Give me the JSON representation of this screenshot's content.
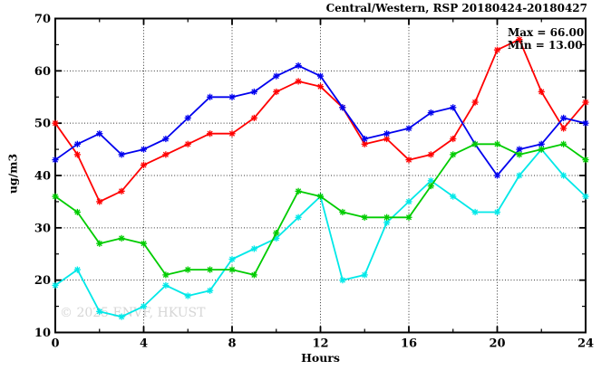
{
  "title": "Central/Western, RSP 20180424-20180427",
  "annotation": {
    "max_label": "Max = 66.00",
    "min_label": "Min = 13.00"
  },
  "watermark": "© 2025 ENVF, HKUST",
  "chart_data": {
    "type": "line",
    "title": "Central/Western, RSP 20180424-20180427",
    "xlabel": "Hours",
    "ylabel": "ug/m3",
    "xlim": [
      0,
      24
    ],
    "ylim": [
      10,
      70
    ],
    "grid": "dotted",
    "legend": "none",
    "marker": "star",
    "x_major_ticks": [
      0,
      4,
      8,
      12,
      16,
      20,
      24
    ],
    "x_minor_ticks": [
      2,
      6,
      10,
      14,
      18,
      22
    ],
    "y_major_ticks": [
      10,
      20,
      30,
      40,
      50,
      60,
      70
    ],
    "y_minor_ticks": [
      15,
      25,
      35,
      45,
      55,
      65
    ],
    "x_gridlines": [
      4,
      8,
      12,
      16,
      20
    ],
    "y_gridlines": [
      20,
      30,
      40,
      50,
      60
    ],
    "stats": {
      "max": 66.0,
      "min": 13.0
    },
    "x": [
      0,
      1,
      2,
      3,
      4,
      5,
      6,
      7,
      8,
      9,
      10,
      11,
      12,
      13,
      14,
      15,
      16,
      17,
      18,
      19,
      20,
      21,
      22,
      23,
      24
    ],
    "series": [
      {
        "name": "red",
        "color": "#ff0000",
        "values": [
          50,
          44,
          35,
          37,
          42,
          44,
          46,
          48,
          48,
          51,
          56,
          58,
          57,
          53,
          46,
          47,
          43,
          44,
          47,
          54,
          64,
          66,
          56,
          49,
          54
        ]
      },
      {
        "name": "blue",
        "color": "#0000ee",
        "values": [
          43,
          46,
          48,
          44,
          45,
          47,
          51,
          55,
          55,
          56,
          59,
          61,
          59,
          53,
          47,
          48,
          49,
          52,
          53,
          46,
          40,
          45,
          46,
          51,
          50
        ]
      },
      {
        "name": "cyan",
        "color": "#00e8e8",
        "values": [
          19,
          22,
          14,
          13,
          15,
          19,
          17,
          18,
          24,
          26,
          28,
          32,
          36,
          20,
          21,
          31,
          35,
          39,
          36,
          33,
          33,
          40,
          45,
          40,
          36
        ]
      },
      {
        "name": "green",
        "color": "#00cc00",
        "values": [
          36,
          33,
          27,
          28,
          27,
          21,
          22,
          22,
          22,
          21,
          29,
          37,
          36,
          33,
          32,
          32,
          32,
          38,
          44,
          46,
          46,
          44,
          45,
          46,
          43
        ]
      }
    ]
  }
}
